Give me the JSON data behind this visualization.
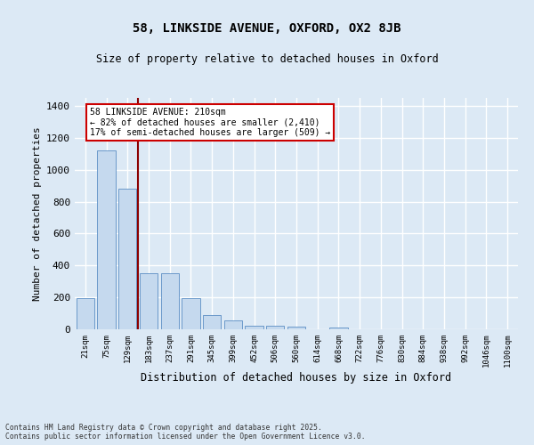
{
  "title_line1": "58, LINKSIDE AVENUE, OXFORD, OX2 8JB",
  "title_line2": "Size of property relative to detached houses in Oxford",
  "xlabel": "Distribution of detached houses by size in Oxford",
  "ylabel": "Number of detached properties",
  "categories": [
    "21sqm",
    "75sqm",
    "129sqm",
    "183sqm",
    "237sqm",
    "291sqm",
    "345sqm",
    "399sqm",
    "452sqm",
    "506sqm",
    "560sqm",
    "614sqm",
    "668sqm",
    "722sqm",
    "776sqm",
    "830sqm",
    "884sqm",
    "938sqm",
    "992sqm",
    "1046sqm",
    "1100sqm"
  ],
  "values": [
    195,
    1120,
    880,
    350,
    350,
    195,
    90,
    55,
    22,
    20,
    15,
    0,
    12,
    0,
    0,
    0,
    0,
    0,
    0,
    0,
    0
  ],
  "bar_color": "#c5d9ee",
  "bar_edge_color": "#5b8ec4",
  "vline_color": "#8b0000",
  "annotation_title": "58 LINKSIDE AVENUE: 210sqm",
  "annotation_line2": "← 82% of detached houses are smaller (2,410)",
  "annotation_line3": "17% of semi-detached houses are larger (509) →",
  "annotation_box_color": "#cc0000",
  "annotation_bg": "#ffffff",
  "ylim": [
    0,
    1450
  ],
  "yticks": [
    0,
    200,
    400,
    600,
    800,
    1000,
    1200,
    1400
  ],
  "background_color": "#dce9f5",
  "grid_color": "#ffffff",
  "footer_line1": "Contains HM Land Registry data © Crown copyright and database right 2025.",
  "footer_line2": "Contains public sector information licensed under the Open Government Licence v3.0."
}
